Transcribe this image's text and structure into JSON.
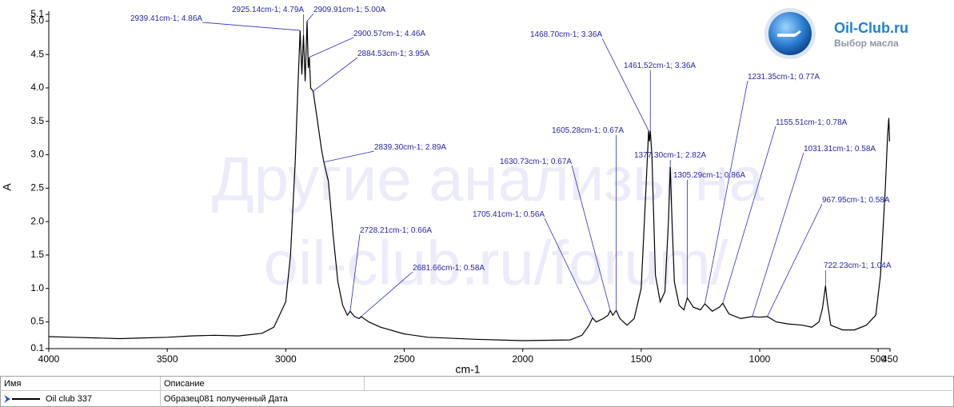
{
  "chart_data": {
    "type": "line",
    "xlabel": "cm-1",
    "ylabel": "A",
    "xlim": [
      4000,
      450
    ],
    "ylim": [
      0.1,
      5.1
    ],
    "xticks": [
      4000,
      3500,
      3000,
      2500,
      2000,
      1500,
      1000,
      500,
      450
    ],
    "yticks": [
      0.1,
      0.5,
      {
        "value": 1,
        "label": "1.0"
      },
      1.5,
      {
        "value": 2,
        "label": "2.0"
      },
      2.5,
      {
        "value": 3,
        "label": "3.0"
      },
      3.5,
      {
        "value": 4,
        "label": "4.0"
      },
      4.5,
      {
        "value": 5,
        "label": "5.0"
      },
      5.1
    ],
    "x": [
      4000,
      3900,
      3800,
      3700,
      3600,
      3500,
      3400,
      3300,
      3200,
      3100,
      3050,
      3000,
      2980,
      2960,
      2950,
      2939.41,
      2932,
      2925.14,
      2918,
      2909.91,
      2905,
      2900.57,
      2895,
      2884.53,
      2870,
      2850,
      2839.3,
      2820,
      2800,
      2780,
      2760,
      2740,
      2728.21,
      2710,
      2690,
      2681.66,
      2650,
      2600,
      2500,
      2400,
      2200,
      2000,
      1800,
      1750,
      1720,
      1705.41,
      1690,
      1660,
      1640,
      1630.73,
      1620,
      1605.28,
      1590,
      1560,
      1530,
      1500,
      1480,
      1468.7,
      1465,
      1461.52,
      1455,
      1440,
      1420,
      1400,
      1385,
      1377.3,
      1370,
      1360,
      1340,
      1320,
      1305.29,
      1280,
      1250,
      1231.35,
      1200,
      1170,
      1155.51,
      1130,
      1080,
      1031.31,
      1000,
      967.95,
      930,
      880,
      820,
      780,
      750,
      735,
      722.23,
      715,
      700,
      650,
      600,
      550,
      510,
      490,
      470,
      460,
      455,
      452
    ],
    "series": [
      {
        "name": "Oil club 337",
        "description": "Образец081 полученный  Дата",
        "color": "#000000",
        "values": [
          0.28,
          0.27,
          0.26,
          0.25,
          0.26,
          0.27,
          0.29,
          0.3,
          0.29,
          0.33,
          0.42,
          0.8,
          1.5,
          2.9,
          3.9,
          4.86,
          4.2,
          4.79,
          4.1,
          5.0,
          4.3,
          4.46,
          4.0,
          3.95,
          3.6,
          3.1,
          2.89,
          2.6,
          1.8,
          1.1,
          0.75,
          0.6,
          0.66,
          0.58,
          0.55,
          0.58,
          0.5,
          0.42,
          0.32,
          0.27,
          0.24,
          0.22,
          0.23,
          0.3,
          0.45,
          0.56,
          0.5,
          0.55,
          0.6,
          0.67,
          0.6,
          0.67,
          0.55,
          0.45,
          0.55,
          1.0,
          2.5,
          3.36,
          3.2,
          3.36,
          3.0,
          1.2,
          0.8,
          0.95,
          2.0,
          2.82,
          2.0,
          1.1,
          0.75,
          0.68,
          0.86,
          0.72,
          0.68,
          0.77,
          0.66,
          0.72,
          0.78,
          0.62,
          0.55,
          0.58,
          0.57,
          0.58,
          0.5,
          0.47,
          0.45,
          0.42,
          0.5,
          0.7,
          1.04,
          0.8,
          0.45,
          0.38,
          0.38,
          0.45,
          0.6,
          1.2,
          2.5,
          3.3,
          3.55,
          3.2
        ]
      }
    ],
    "annotations": [
      {
        "label": "2939.41cm-1; 4.86A",
        "x": 2939.41,
        "y": 4.86
      },
      {
        "label": "2925.14cm-1; 4.79A",
        "x": 2925.14,
        "y": 4.79
      },
      {
        "label": "2909.91cm-1; 5.00A",
        "x": 2909.91,
        "y": 5.0
      },
      {
        "label": "2900.57cm-1; 4.46A",
        "x": 2900.57,
        "y": 4.46
      },
      {
        "label": "2884.53cm-1; 3.95A",
        "x": 2884.53,
        "y": 3.95
      },
      {
        "label": "2839.30cm-1; 2.89A",
        "x": 2839.3,
        "y": 2.89
      },
      {
        "label": "2728.21cm-1; 0.66A",
        "x": 2728.21,
        "y": 0.66
      },
      {
        "label": "2681.66cm-1; 0.58A",
        "x": 2681.66,
        "y": 0.58
      },
      {
        "label": "1705.41cm-1; 0.56A",
        "x": 1705.41,
        "y": 0.56
      },
      {
        "label": "1630.73cm-1; 0.67A",
        "x": 1630.73,
        "y": 0.67
      },
      {
        "label": "1605.28cm-1; 0.67A",
        "x": 1605.28,
        "y": 0.67
      },
      {
        "label": "1468.70cm-1; 3.36A",
        "x": 1468.7,
        "y": 3.36
      },
      {
        "label": "1461.52cm-1; 3.36A",
        "x": 1461.52,
        "y": 3.36
      },
      {
        "label": "1377.30cm-1; 2.82A",
        "x": 1377.3,
        "y": 2.82
      },
      {
        "label": "1305.29cm-1; 0.86A",
        "x": 1305.29,
        "y": 0.86
      },
      {
        "label": "1231.35cm-1; 0.77A",
        "x": 1231.35,
        "y": 0.77
      },
      {
        "label": "1155.51cm-1; 0.78A",
        "x": 1155.51,
        "y": 0.78
      },
      {
        "label": "1031.31cm-1; 0.58A",
        "x": 1031.31,
        "y": 0.58
      },
      {
        "label": "967.95cm-1; 0.58A",
        "x": 967.95,
        "y": 0.58
      },
      {
        "label": "722.23cm-1; 1.04A",
        "x": 722.23,
        "y": 1.04
      }
    ],
    "legend_header": [
      "Имя",
      "Описание"
    ],
    "watermark": [
      "Другие анализы на",
      "oil-club.ru/forum/"
    ],
    "logo": {
      "title": "Oil-Club.ru",
      "subtitle": "Выбор масла"
    }
  }
}
